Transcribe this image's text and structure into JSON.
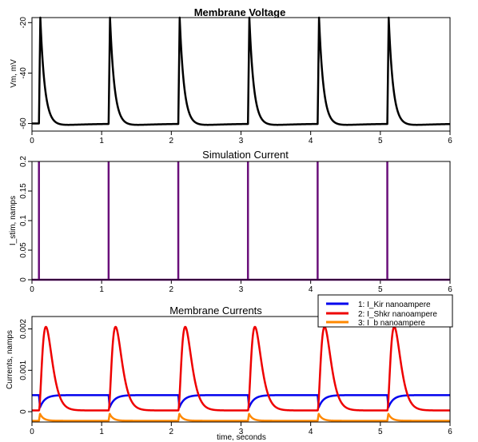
{
  "chart_data": [
    {
      "id": "voltage",
      "type": "line",
      "title": "Membrane Voltage",
      "xlabel": "",
      "ylabel": "Vm, mV",
      "xlim": [
        0,
        6
      ],
      "ylim": [
        -63,
        -18
      ],
      "xticks": [
        0,
        1,
        2,
        3,
        4,
        5,
        6
      ],
      "yticks": [
        -60,
        -40,
        -20
      ],
      "spike_times": [
        0.1,
        1.1,
        2.1,
        3.1,
        4.1,
        5.1
      ],
      "resting_mv": -60,
      "peak_mv": -18,
      "undershoot_mv": -61.5,
      "series": [
        {
          "color": "#000000"
        }
      ]
    },
    {
      "id": "stimulus",
      "type": "line",
      "title": "Simulation Current",
      "xlabel": "",
      "ylabel": "I_stim, namps",
      "xlim": [
        0,
        6
      ],
      "ylim": [
        0,
        0.2
      ],
      "xticks": [
        0,
        1,
        2,
        3,
        4,
        5,
        6
      ],
      "yticks": [
        0,
        0.05,
        0.1,
        0.15,
        0.2
      ],
      "pulse_times": [
        0.1,
        1.1,
        2.1,
        3.1,
        4.1,
        5.1
      ],
      "pulse_amplitude": 0.2,
      "series": [
        {
          "color": "#6a0f7a"
        }
      ]
    },
    {
      "id": "currents",
      "type": "line",
      "title": "Membrane Currents",
      "xlabel": "time, seconds",
      "ylabel": "Currents, namps",
      "xlim": [
        0,
        6
      ],
      "ylim": [
        -0.00025,
        0.0023
      ],
      "xticks": [
        0,
        1,
        2,
        3,
        4,
        5,
        6
      ],
      "yticks": [
        0,
        0.001,
        0.002
      ],
      "spike_times": [
        0.1,
        1.1,
        2.1,
        3.1,
        4.1,
        5.1
      ],
      "legend_position": "top-right",
      "series": [
        {
          "name": "1: I_Kir nanoampere",
          "color": "#0000ee",
          "baseline": 0.0004,
          "dip": 0.0001
        },
        {
          "name": "2: I_Shkr nanoampere",
          "color": "#ee0000",
          "baseline": 3e-05,
          "peak": 0.00205
        },
        {
          "name": "3: I_b nanoampere",
          "color": "#ff8800",
          "baseline": -0.00022,
          "peak": -5e-05
        }
      ]
    }
  ]
}
